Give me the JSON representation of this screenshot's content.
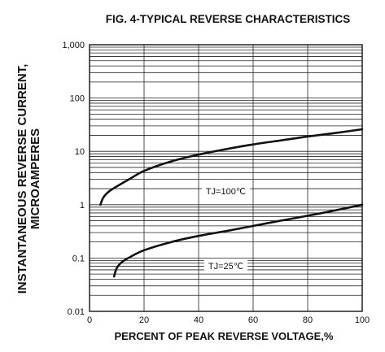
{
  "chart_data": {
    "type": "line",
    "title": "FIG. 4-TYPICAL REVERSE CHARACTERISTICS",
    "xlabel": "PERCENT OF PEAK REVERSE VOLTAGE,%",
    "ylabel_lines": [
      "INSTANTANEOUS REVERSE CURRENT,",
      "MICROAMPERES"
    ],
    "xlim": [
      0,
      100
    ],
    "ylim": [
      0.01,
      1000
    ],
    "yscale": "log",
    "x_ticks": [
      0,
      20,
      40,
      60,
      80,
      100
    ],
    "y_ticks": [
      0.01,
      0.1,
      1,
      10,
      100,
      1000
    ],
    "y_tick_labels": [
      "0.01",
      "0.1",
      "1",
      "10",
      "100",
      "1,000"
    ],
    "grid": true,
    "series": [
      {
        "name": "TJ=100℃",
        "x": [
          4,
          5,
          7,
          10,
          15,
          20,
          30,
          40,
          50,
          60,
          70,
          80,
          90,
          100
        ],
        "y": [
          1.0,
          1.35,
          1.75,
          2.2,
          3.1,
          4.3,
          6.5,
          8.7,
          11.0,
          13.5,
          16.0,
          19.0,
          22.0,
          26.0
        ]
      },
      {
        "name": "TJ=25℃",
        "x": [
          9,
          10,
          12,
          15,
          20,
          30,
          40,
          50,
          60,
          70,
          80,
          90,
          100
        ],
        "y": [
          0.045,
          0.065,
          0.085,
          0.105,
          0.14,
          0.2,
          0.26,
          0.32,
          0.4,
          0.5,
          0.62,
          0.78,
          1.0
        ]
      }
    ],
    "annotations": [
      {
        "text": "TJ=100℃",
        "x": 50,
        "y": 1.8
      },
      {
        "text": "TJ=25℃",
        "x": 50,
        "y": 0.072
      }
    ]
  }
}
